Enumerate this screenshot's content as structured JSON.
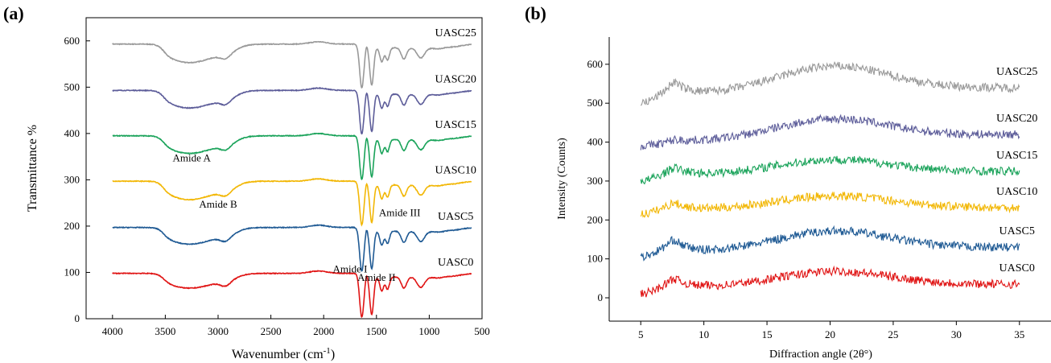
{
  "chart_data": [
    {
      "panel": "(a)",
      "type": "line",
      "xlabel": "Wavenumber (cm",
      "xlabel_sup": "-1",
      "xlabel_close": ")",
      "ylabel": "Transmittance %",
      "xlim": [
        4250,
        500
      ],
      "ylim": [
        0,
        650
      ],
      "x_ticks": [
        "4000",
        "3500",
        "3000",
        "2500",
        "2000",
        "1500",
        "1000",
        "500"
      ],
      "y_ticks": [
        "0",
        "100",
        "200",
        "300",
        "400",
        "500",
        "600"
      ],
      "x_tick_values": [
        4000,
        3500,
        3000,
        2500,
        2000,
        1500,
        1000,
        500
      ],
      "y_tick_values": [
        0,
        100,
        200,
        300,
        400,
        500,
        600
      ],
      "series": [
        {
          "name": "UASC25",
          "color": "#999999",
          "baseline": 593,
          "amide_a_dip": 40,
          "amide_i_dip": 90
        },
        {
          "name": "UASC20",
          "color": "#5c5c99",
          "baseline": 493,
          "amide_a_dip": 38,
          "amide_i_dip": 90
        },
        {
          "name": "UASC15",
          "color": "#1aa35a",
          "baseline": 395,
          "amide_a_dip": 38,
          "amide_i_dip": 90
        },
        {
          "name": "UASC10",
          "color": "#f2b705",
          "baseline": 297,
          "amide_a_dip": 40,
          "amide_i_dip": 90
        },
        {
          "name": "UASC5",
          "color": "#1f5a94",
          "baseline": 197,
          "amide_a_dip": 36,
          "amide_i_dip": 90
        },
        {
          "name": "UASC0",
          "color": "#e01414",
          "baseline": 98,
          "amide_a_dip": 32,
          "amide_i_dip": 90
        }
      ],
      "annotations": [
        {
          "text": "Amide A",
          "x": 3250,
          "y": 340
        },
        {
          "text": "Amide B",
          "x": 3000,
          "y": 240
        },
        {
          "text": "Amide III",
          "x": 1280,
          "y": 222
        },
        {
          "text": "Amide I",
          "x": 1750,
          "y": 100
        },
        {
          "text": "Amide II",
          "x": 1500,
          "y": 82
        }
      ]
    },
    {
      "panel": "(b)",
      "type": "line",
      "xlabel": "Diffraction angle (2θ°)",
      "ylabel": "Intensity (Counts)",
      "xlim": [
        2.5,
        37.5
      ],
      "ylim": [
        -60,
        670
      ],
      "x_ticks": [
        "5",
        "10",
        "15",
        "20",
        "25",
        "30",
        "35"
      ],
      "y_ticks": [
        "0",
        "100",
        "200",
        "300",
        "400",
        "500",
        "600"
      ],
      "x_tick_values": [
        5,
        10,
        15,
        20,
        25,
        30,
        35
      ],
      "y_tick_values": [
        0,
        100,
        200,
        300,
        400,
        500,
        600
      ],
      "series": [
        {
          "name": "UASC25",
          "color": "#999999",
          "start": 500,
          "peak_low": 555,
          "valley": 520,
          "peak_high": 595,
          "end": 540
        },
        {
          "name": "UASC20",
          "color": "#5c5c99",
          "start": 390,
          "peak_low": 405,
          "valley": 400,
          "peak_high": 460,
          "end": 420
        },
        {
          "name": "UASC15",
          "color": "#1aa35a",
          "start": 300,
          "peak_low": 335,
          "valley": 315,
          "peak_high": 355,
          "end": 325
        },
        {
          "name": "UASC10",
          "color": "#f2b705",
          "start": 215,
          "peak_low": 245,
          "valley": 225,
          "peak_high": 262,
          "end": 232
        },
        {
          "name": "UASC5",
          "color": "#1f5a94",
          "start": 105,
          "peak_low": 150,
          "valley": 115,
          "peak_high": 172,
          "end": 130
        },
        {
          "name": "UASC0",
          "color": "#e01414",
          "start": 10,
          "peak_low": 50,
          "valley": 25,
          "peak_high": 68,
          "end": 35
        }
      ]
    }
  ]
}
